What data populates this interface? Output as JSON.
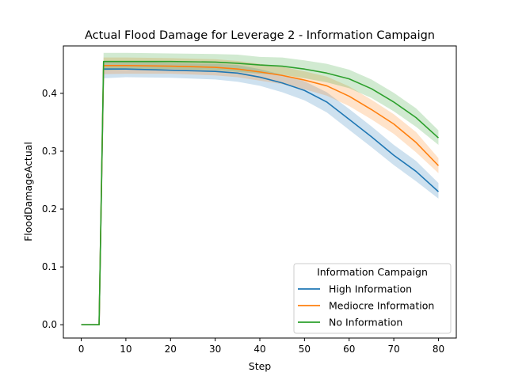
{
  "chart_data": {
    "type": "line",
    "title": "Actual Flood Damage for Leverage 2 - Information Campaign",
    "xlabel": "Step",
    "ylabel": "FloodDamageActual",
    "xlim": [
      -4,
      84
    ],
    "ylim": [
      -0.023,
      0.482
    ],
    "xticks": [
      0,
      10,
      20,
      30,
      40,
      50,
      60,
      70,
      80
    ],
    "yticks": [
      0.0,
      0.1,
      0.2,
      0.3,
      0.4
    ],
    "ytick_labels": [
      "0.0",
      "0.1",
      "0.2",
      "0.3",
      "0.4"
    ],
    "legend": {
      "title": "Information Campaign",
      "position": "lower-right"
    },
    "x": [
      0,
      4,
      5,
      10,
      20,
      30,
      35,
      40,
      45,
      50,
      55,
      60,
      65,
      70,
      75,
      80
    ],
    "series": [
      {
        "name": "High Information",
        "color": "#1f77b4",
        "values": [
          0,
          0,
          0.442,
          0.442,
          0.44,
          0.438,
          0.435,
          0.428,
          0.418,
          0.405,
          0.385,
          0.355,
          0.325,
          0.293,
          0.265,
          0.23
        ],
        "lower": [
          0,
          0,
          0.426,
          0.428,
          0.427,
          0.424,
          0.42,
          0.413,
          0.402,
          0.388,
          0.367,
          0.337,
          0.307,
          0.276,
          0.248,
          0.218
        ],
        "upper": [
          0,
          0,
          0.455,
          0.456,
          0.453,
          0.451,
          0.449,
          0.442,
          0.432,
          0.421,
          0.402,
          0.373,
          0.343,
          0.311,
          0.283,
          0.245
        ]
      },
      {
        "name": "Mediocre Information",
        "color": "#ff7f0e",
        "values": [
          0,
          0,
          0.448,
          0.448,
          0.447,
          0.445,
          0.442,
          0.437,
          0.431,
          0.423,
          0.413,
          0.395,
          0.372,
          0.347,
          0.315,
          0.275
        ],
        "lower": [
          0,
          0,
          0.433,
          0.434,
          0.434,
          0.431,
          0.428,
          0.422,
          0.416,
          0.407,
          0.396,
          0.378,
          0.355,
          0.33,
          0.298,
          0.262
        ],
        "upper": [
          0,
          0,
          0.462,
          0.462,
          0.461,
          0.459,
          0.456,
          0.451,
          0.446,
          0.438,
          0.429,
          0.412,
          0.389,
          0.364,
          0.333,
          0.288
        ]
      },
      {
        "name": "No Information",
        "color": "#2ca02c",
        "values": [
          0,
          0,
          0.455,
          0.455,
          0.455,
          0.454,
          0.452,
          0.449,
          0.447,
          0.442,
          0.435,
          0.425,
          0.408,
          0.385,
          0.358,
          0.323
        ],
        "lower": [
          0,
          0,
          0.44,
          0.441,
          0.442,
          0.44,
          0.437,
          0.434,
          0.432,
          0.426,
          0.419,
          0.409,
          0.392,
          0.369,
          0.342,
          0.311
        ],
        "upper": [
          0,
          0,
          0.47,
          0.47,
          0.469,
          0.468,
          0.467,
          0.463,
          0.462,
          0.457,
          0.451,
          0.441,
          0.424,
          0.401,
          0.374,
          0.336
        ]
      }
    ]
  }
}
